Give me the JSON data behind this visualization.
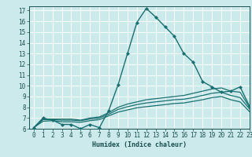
{
  "title": "",
  "xlabel": "Humidex (Indice chaleur)",
  "ylabel": "",
  "xlim": [
    -0.5,
    23
  ],
  "ylim": [
    6,
    17.4
  ],
  "yticks": [
    6,
    7,
    8,
    9,
    10,
    11,
    12,
    13,
    14,
    15,
    16,
    17
  ],
  "xticks": [
    0,
    1,
    2,
    3,
    4,
    5,
    6,
    7,
    8,
    9,
    10,
    11,
    12,
    13,
    14,
    15,
    16,
    17,
    18,
    19,
    20,
    21,
    22,
    23
  ],
  "bg_color": "#cce9ec",
  "line_color": "#1a7070",
  "grid_color": "#ffffff",
  "lines": [
    {
      "x": [
        0,
        1,
        2,
        3,
        4,
        5,
        6,
        7,
        8,
        9,
        10,
        11,
        12,
        13,
        14,
        15,
        16,
        17,
        18,
        19,
        20,
        21,
        22,
        23
      ],
      "y": [
        6.1,
        7.0,
        6.8,
        6.4,
        6.4,
        6.0,
        6.4,
        6.1,
        7.7,
        10.1,
        13.0,
        15.9,
        17.2,
        16.4,
        15.5,
        14.6,
        13.0,
        12.2,
        10.4,
        9.9,
        9.4,
        9.5,
        9.9,
        8.1
      ],
      "marker": "D",
      "markersize": 2.0,
      "linewidth": 1.0
    },
    {
      "x": [
        0,
        1,
        2,
        3,
        4,
        5,
        6,
        7,
        8,
        9,
        10,
        11,
        12,
        13,
        14,
        15,
        16,
        17,
        18,
        19,
        20,
        21,
        22,
        23
      ],
      "y": [
        6.1,
        6.9,
        6.9,
        6.9,
        6.9,
        6.8,
        7.0,
        7.1,
        7.5,
        8.0,
        8.3,
        8.5,
        8.7,
        8.8,
        8.9,
        9.0,
        9.1,
        9.3,
        9.5,
        9.7,
        9.8,
        9.5,
        9.4,
        8.0
      ],
      "marker": null,
      "markersize": 0,
      "linewidth": 0.9
    },
    {
      "x": [
        0,
        1,
        2,
        3,
        4,
        5,
        6,
        7,
        8,
        9,
        10,
        11,
        12,
        13,
        14,
        15,
        16,
        17,
        18,
        19,
        20,
        21,
        22,
        23
      ],
      "y": [
        6.1,
        6.85,
        6.85,
        6.8,
        6.8,
        6.75,
        6.9,
        7.0,
        7.35,
        7.8,
        8.05,
        8.25,
        8.4,
        8.5,
        8.6,
        8.7,
        8.75,
        8.9,
        9.1,
        9.3,
        9.4,
        9.1,
        8.9,
        7.85
      ],
      "marker": null,
      "markersize": 0,
      "linewidth": 0.9
    },
    {
      "x": [
        0,
        1,
        2,
        3,
        4,
        5,
        6,
        7,
        8,
        9,
        10,
        11,
        12,
        13,
        14,
        15,
        16,
        17,
        18,
        19,
        20,
        21,
        22,
        23
      ],
      "y": [
        6.1,
        6.7,
        6.75,
        6.65,
        6.65,
        6.6,
        6.75,
        6.85,
        7.2,
        7.55,
        7.75,
        7.95,
        8.05,
        8.15,
        8.25,
        8.35,
        8.4,
        8.55,
        8.7,
        8.9,
        9.0,
        8.7,
        8.5,
        7.6
      ],
      "marker": null,
      "markersize": 0,
      "linewidth": 0.9
    }
  ],
  "tick_fontsize": 5.5,
  "xlabel_fontsize": 6.0
}
